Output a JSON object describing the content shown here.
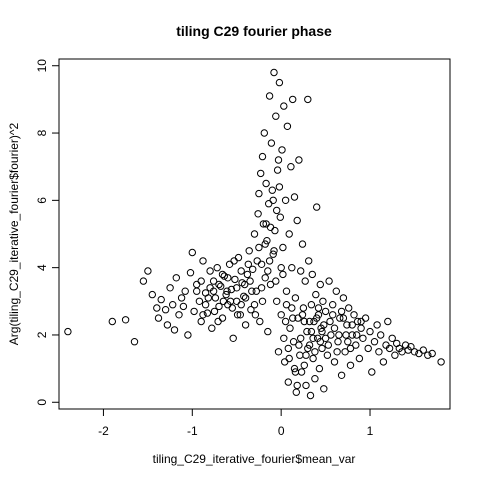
{
  "chart_data": {
    "type": "scatter",
    "title": "tiling C29 fourier phase",
    "xlabel": "tiling_C29_iterative_fourier$mean_var",
    "ylabel": "Arg(tiling_C29_iterative_fourier$fourier)^2",
    "xlim": [
      -2.5,
      1.9
    ],
    "ylim": [
      -0.2,
      10.2
    ],
    "xticks": [
      -2,
      -1,
      0,
      1
    ],
    "yticks": [
      0,
      2,
      4,
      6,
      8,
      10
    ],
    "grid": false,
    "legend": "none",
    "marker": "open-circle",
    "points": [
      [
        -2.4,
        2.1
      ],
      [
        -1.9,
        2.4
      ],
      [
        -1.75,
        2.45
      ],
      [
        -1.65,
        1.8
      ],
      [
        -1.55,
        3.6
      ],
      [
        -1.5,
        3.9
      ],
      [
        -1.45,
        3.2
      ],
      [
        -1.4,
        2.8
      ],
      [
        -1.38,
        2.5
      ],
      [
        -1.35,
        3.05
      ],
      [
        -1.3,
        2.75
      ],
      [
        -1.28,
        2.3
      ],
      [
        -1.25,
        3.4
      ],
      [
        -1.22,
        2.9
      ],
      [
        -1.2,
        2.15
      ],
      [
        -1.18,
        3.7
      ],
      [
        -1.15,
        2.6
      ],
      [
        -1.12,
        3.1
      ],
      [
        -1.1,
        2.85
      ],
      [
        -1.08,
        3.3
      ],
      [
        -1.05,
        2.0
      ],
      [
        -1.02,
        3.85
      ],
      [
        -1.0,
        4.45
      ],
      [
        -0.98,
        2.7
      ],
      [
        -0.95,
        3.5
      ],
      [
        -0.92,
        3.0
      ],
      [
        -0.9,
        2.4
      ],
      [
        -0.88,
        4.2
      ],
      [
        -0.85,
        3.25
      ],
      [
        -0.83,
        2.65
      ],
      [
        -0.8,
        3.9
      ],
      [
        -0.78,
        2.2
      ],
      [
        -0.76,
        3.6
      ],
      [
        -0.74,
        3.1
      ],
      [
        -0.72,
        4.0
      ],
      [
        -0.7,
        2.85
      ],
      [
        -0.68,
        3.45
      ],
      [
        -0.66,
        2.5
      ],
      [
        -0.64,
        3.75
      ],
      [
        -0.62,
        3.2
      ],
      [
        -0.6,
        2.9
      ],
      [
        -0.58,
        4.1
      ],
      [
        -0.56,
        3.35
      ],
      [
        -0.54,
        1.9
      ],
      [
        -0.52,
        3.65
      ],
      [
        -0.5,
        3.0
      ],
      [
        -0.48,
        4.3
      ],
      [
        -0.46,
        2.6
      ],
      [
        -0.44,
        3.55
      ],
      [
        -0.42,
        3.15
      ],
      [
        -0.4,
        2.3
      ],
      [
        -0.38,
        3.8
      ],
      [
        -0.36,
        4.5
      ],
      [
        -0.34,
        2.75
      ],
      [
        -0.32,
        3.95
      ],
      [
        -0.3,
        5.0
      ],
      [
        -0.28,
        3.3
      ],
      [
        -0.26,
        5.6
      ],
      [
        -0.25,
        6.2
      ],
      [
        -0.24,
        2.4
      ],
      [
        -0.23,
        6.8
      ],
      [
        -0.22,
        4.1
      ],
      [
        -0.21,
        7.3
      ],
      [
        -0.2,
        5.3
      ],
      [
        -0.19,
        8.0
      ],
      [
        -0.18,
        3.7
      ],
      [
        -0.17,
        6.5
      ],
      [
        -0.16,
        4.8
      ],
      [
        -0.15,
        2.1
      ],
      [
        -0.14,
        5.9
      ],
      [
        -0.13,
        9.1
      ],
      [
        -0.12,
        3.5
      ],
      [
        -0.11,
        7.7
      ],
      [
        -0.1,
        6.3
      ],
      [
        -0.09,
        4.4
      ],
      [
        -0.08,
        9.8
      ],
      [
        -0.07,
        5.1
      ],
      [
        -0.06,
        8.5
      ],
      [
        -0.05,
        3.0
      ],
      [
        -0.04,
        6.9
      ],
      [
        -0.03,
        1.5
      ],
      [
        -0.02,
        9.5
      ],
      [
        -0.01,
        5.5
      ],
      [
        0.0,
        2.6
      ],
      [
        0.01,
        7.5
      ],
      [
        0.02,
        4.6
      ],
      [
        0.03,
        8.8
      ],
      [
        0.04,
        1.2
      ],
      [
        0.05,
        6.0
      ],
      [
        0.06,
        3.3
      ],
      [
        0.07,
        8.2
      ],
      [
        0.08,
        0.6
      ],
      [
        0.09,
        5.0
      ],
      [
        0.1,
        2.2
      ],
      [
        0.11,
        7.0
      ],
      [
        0.12,
        4.0
      ],
      [
        0.13,
        9.0
      ],
      [
        0.14,
        1.8
      ],
      [
        0.15,
        6.1
      ],
      [
        0.16,
        3.1
      ],
      [
        0.17,
        0.3
      ],
      [
        0.18,
        5.4
      ],
      [
        0.19,
        2.5
      ],
      [
        0.2,
        7.2
      ],
      [
        0.21,
        1.4
      ],
      [
        0.22,
        3.9
      ],
      [
        0.23,
        0.9
      ],
      [
        0.24,
        4.7
      ],
      [
        0.25,
        2.8
      ],
      [
        0.26,
        1.1
      ],
      [
        0.27,
        3.6
      ],
      [
        0.28,
        0.5
      ],
      [
        0.29,
        2.1
      ],
      [
        0.3,
        9.0
      ],
      [
        0.31,
        4.2
      ],
      [
        0.32,
        1.7
      ],
      [
        0.33,
        0.2
      ],
      [
        0.34,
        2.9
      ],
      [
        0.35,
        3.8
      ],
      [
        0.36,
        1.3
      ],
      [
        0.37,
        2.4
      ],
      [
        0.38,
        0.7
      ],
      [
        0.39,
        3.2
      ],
      [
        0.4,
        5.8
      ],
      [
        0.41,
        1.9
      ],
      [
        0.42,
        2.6
      ],
      [
        0.43,
        1.0
      ],
      [
        0.44,
        3.5
      ],
      [
        0.45,
        2.2
      ],
      [
        0.46,
        1.6
      ],
      [
        0.47,
        3.0
      ],
      [
        0.48,
        0.4
      ],
      [
        0.5,
        2.7
      ],
      [
        0.52,
        1.4
      ],
      [
        0.54,
        3.6
      ],
      [
        0.56,
        2.0
      ],
      [
        0.58,
        2.9
      ],
      [
        0.6,
        1.2
      ],
      [
        0.62,
        3.3
      ],
      [
        0.64,
        1.8
      ],
      [
        0.66,
        2.5
      ],
      [
        0.68,
        0.8
      ],
      [
        0.7,
        3.1
      ],
      [
        0.72,
        1.5
      ],
      [
        0.74,
        2.3
      ],
      [
        0.76,
        2.8
      ],
      [
        0.78,
        1.1
      ],
      [
        0.8,
        2.0
      ],
      [
        0.82,
        2.6
      ],
      [
        0.84,
        1.7
      ],
      [
        0.86,
        2.4
      ],
      [
        0.88,
        1.3
      ],
      [
        0.9,
        2.2
      ],
      [
        0.92,
        1.9
      ],
      [
        0.95,
        2.5
      ],
      [
        0.98,
        1.6
      ],
      [
        1.0,
        2.1
      ],
      [
        1.02,
        0.9
      ],
      [
        1.05,
        1.8
      ],
      [
        1.08,
        2.3
      ],
      [
        1.1,
        1.5
      ],
      [
        1.12,
        2.0
      ],
      [
        1.15,
        1.2
      ],
      [
        1.18,
        1.7
      ],
      [
        1.2,
        2.4
      ],
      [
        1.22,
        1.6
      ],
      [
        1.25,
        1.9
      ],
      [
        1.28,
        1.4
      ],
      [
        1.3,
        1.75
      ],
      [
        1.33,
        1.6
      ],
      [
        1.36,
        1.5
      ],
      [
        1.4,
        1.7
      ],
      [
        1.43,
        1.55
      ],
      [
        1.46,
        1.65
      ],
      [
        1.5,
        1.5
      ],
      [
        1.55,
        1.45
      ],
      [
        1.6,
        1.55
      ],
      [
        1.65,
        1.4
      ],
      [
        1.7,
        1.45
      ],
      [
        1.8,
        1.2
      ],
      [
        -0.95,
        3.3
      ],
      [
        -0.9,
        3.6
      ],
      [
        -0.85,
        2.9
      ],
      [
        -0.8,
        3.4
      ],
      [
        -0.75,
        2.7
      ],
      [
        -0.7,
        3.5
      ],
      [
        -0.65,
        3.0
      ],
      [
        -0.6,
        3.7
      ],
      [
        -0.55,
        2.8
      ],
      [
        -0.5,
        3.4
      ],
      [
        -0.45,
        3.9
      ],
      [
        -0.4,
        3.1
      ],
      [
        -0.35,
        3.6
      ],
      [
        -0.3,
        2.9
      ],
      [
        -0.27,
        4.2
      ],
      [
        -0.22,
        3.4
      ],
      [
        -0.18,
        4.7
      ],
      [
        -0.15,
        3.9
      ],
      [
        -0.12,
        5.2
      ],
      [
        -0.08,
        4.5
      ],
      [
        -0.05,
        5.7
      ],
      [
        -0.02,
        6.4
      ],
      [
        0.02,
        3.8
      ],
      [
        0.05,
        2.4
      ],
      [
        0.08,
        1.6
      ],
      [
        0.12,
        2.8
      ],
      [
        0.15,
        1.0
      ],
      [
        0.18,
        0.5
      ],
      [
        0.22,
        1.9
      ],
      [
        0.26,
        2.4
      ],
      [
        0.3,
        1.6
      ],
      [
        0.34,
        2.1
      ],
      [
        0.38,
        1.5
      ],
      [
        0.42,
        2.8
      ],
      [
        0.46,
        2.1
      ],
      [
        0.5,
        1.9
      ],
      [
        0.55,
        2.4
      ],
      [
        0.6,
        2.2
      ],
      [
        0.65,
        2.0
      ],
      [
        0.7,
        2.5
      ],
      [
        0.75,
        1.8
      ],
      [
        0.8,
        2.3
      ],
      [
        0.85,
        2.0
      ],
      [
        0.9,
        2.4
      ],
      [
        -0.88,
        2.6
      ],
      [
        -0.82,
        3.1
      ],
      [
        -0.76,
        3.3
      ],
      [
        -0.71,
        2.4
      ],
      [
        -0.66,
        3.8
      ],
      [
        -0.61,
        3.3
      ],
      [
        -0.57,
        3.0
      ],
      [
        -0.53,
        4.2
      ],
      [
        -0.49,
        2.6
      ],
      [
        -0.45,
        2.9
      ],
      [
        -0.41,
        3.5
      ],
      [
        -0.37,
        4.1
      ],
      [
        -0.33,
        3.3
      ],
      [
        -0.29,
        2.6
      ],
      [
        -0.25,
        4.6
      ],
      [
        -0.21,
        3.0
      ],
      [
        -0.17,
        5.3
      ],
      [
        -0.13,
        4.2
      ],
      [
        -0.09,
        6.0
      ],
      [
        -0.06,
        3.6
      ],
      [
        -0.03,
        7.2
      ],
      [
        0.0,
        4.0
      ],
      [
        0.03,
        1.9
      ],
      [
        0.06,
        2.9
      ],
      [
        0.09,
        1.3
      ],
      [
        0.13,
        2.5
      ],
      [
        0.16,
        0.9
      ],
      [
        0.2,
        1.7
      ],
      [
        0.24,
        2.6
      ],
      [
        0.28,
        1.4
      ],
      [
        0.32,
        2.4
      ],
      [
        0.36,
        1.9
      ],
      [
        0.4,
        2.5
      ],
      [
        0.44,
        1.8
      ],
      [
        0.48,
        2.3
      ],
      [
        0.53,
        1.7
      ],
      [
        0.58,
        2.6
      ],
      [
        0.63,
        1.5
      ],
      [
        0.68,
        2.7
      ],
      [
        0.73,
        2.0
      ],
      [
        0.78,
        1.6
      ]
    ]
  }
}
